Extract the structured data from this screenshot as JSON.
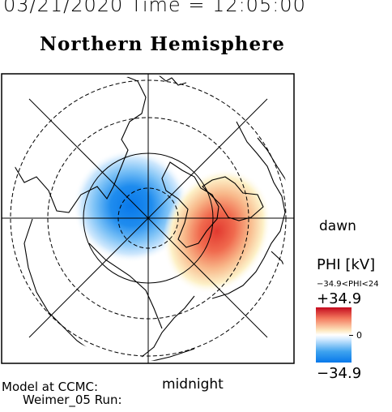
{
  "header": {
    "datetime_line": "03/21/2020 Time = 12:05:00"
  },
  "map": {
    "title": "Northern Hemisphere",
    "dawn_label": "dawn",
    "midnight_label": "midnight",
    "projection": "polar-stereographic",
    "pole": "north",
    "latitude_circles_deg": [
      80,
      70,
      60,
      50
    ],
    "grid_style": "dashed-circles-and-radial-lines"
  },
  "model_info": {
    "line1": "Model at CCMC:",
    "line2": "Weimer_05 Run:"
  },
  "legend": {
    "title": "PHI [kV]",
    "range_text": "−34.9<PHI<24",
    "max_label": "+34.9",
    "zero_label": "0",
    "min_label": "−34.9",
    "colors": {
      "high": "#c40a1e",
      "mid": "#ffffff",
      "low": "#0878ea"
    }
  },
  "chart_data": {
    "type": "heatmap",
    "quantity": "PHI",
    "unit": "kV",
    "min": -34.9,
    "max": 34.9,
    "cells": [
      {
        "name": "negative-cell",
        "peak_value": -34.9,
        "sign": "negative",
        "color": "#0878ea"
      },
      {
        "name": "positive-cell",
        "peak_value": 24,
        "sign": "positive",
        "color": "#e8433c"
      }
    ]
  }
}
